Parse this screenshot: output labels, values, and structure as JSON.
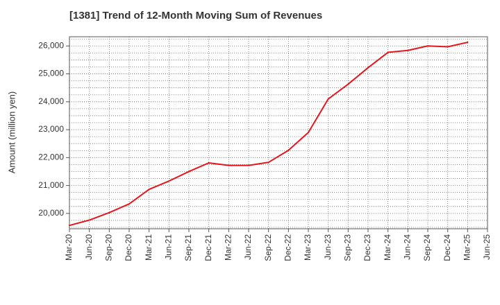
{
  "chart_data": {
    "type": "line",
    "title": "[1381]  Trend of 12-Month Moving Sum of Revenues",
    "xlabel": "",
    "ylabel": "Amount (million yen)",
    "x": [
      "Mar-20",
      "Jun-20",
      "Sep-20",
      "Dec-20",
      "Mar-21",
      "Jun-21",
      "Sep-21",
      "Dec-21",
      "Mar-22",
      "Jun-22",
      "Sep-22",
      "Dec-22",
      "Mar-23",
      "Jun-23",
      "Sep-23",
      "Dec-23",
      "Mar-24",
      "Jun-24",
      "Sep-24",
      "Dec-24",
      "Mar-25"
    ],
    "x_ticks": [
      "Mar-20",
      "Jun-20",
      "Sep-20",
      "Dec-20",
      "Mar-21",
      "Jun-21",
      "Sep-21",
      "Dec-21",
      "Mar-22",
      "Jun-22",
      "Sep-22",
      "Dec-22",
      "Mar-23",
      "Jun-23",
      "Sep-23",
      "Dec-23",
      "Mar-24",
      "Jun-24",
      "Sep-24",
      "Dec-24",
      "Mar-25",
      "Jun-25"
    ],
    "series": [
      {
        "color": "#e8141b",
        "values": [
          19570,
          19760,
          20030,
          20340,
          20860,
          21160,
          21500,
          21810,
          21720,
          21720,
          21830,
          22260,
          22900,
          24100,
          24630,
          25220,
          25770,
          25840,
          26000,
          25970,
          26130
        ]
      }
    ],
    "y_ticks": [
      20000,
      21000,
      22000,
      23000,
      24000,
      25000,
      26000
    ],
    "y_tick_labels": [
      "20,000",
      "21,000",
      "22,000",
      "23,000",
      "24,000",
      "25,000",
      "26,000"
    ],
    "ylim": [
      19450,
      26330
    ],
    "grid": true,
    "grid_style": "dotted",
    "legend": "none"
  }
}
